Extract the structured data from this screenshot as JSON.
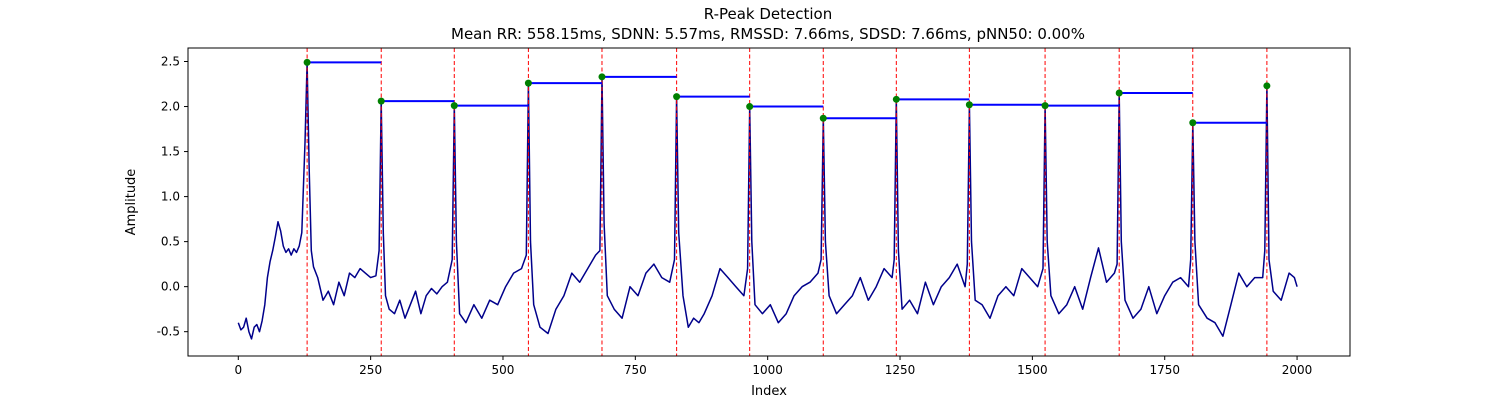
{
  "chart_data": {
    "type": "line",
    "title": "R-Peak Detection",
    "subtitle": "Mean RR: 558.15ms, SDNN: 5.57ms, RMSSD: 7.66ms, SDSD: 7.66ms, pNN50: 0.00%",
    "xlabel": "Index",
    "ylabel": "Amplitude",
    "xlim": [
      -95,
      2100
    ],
    "ylim": [
      -0.77,
      2.65
    ],
    "xticks": [
      0,
      250,
      500,
      750,
      1000,
      1250,
      1500,
      1750,
      2000
    ],
    "yticks": [
      -0.5,
      0.0,
      0.5,
      1.0,
      1.5,
      2.0,
      2.5
    ],
    "grid": false,
    "colors": {
      "signal": "#00008b",
      "peak_lines": "#ff0000",
      "peak_markers": "#008000",
      "rr_segments": "#0000ff"
    },
    "peaks": {
      "x": [
        130,
        270,
        408,
        548,
        687,
        828,
        966,
        1105,
        1243,
        1381,
        1524,
        1664,
        1803,
        1943
      ],
      "y": [
        2.49,
        2.06,
        2.01,
        2.26,
        2.33,
        2.11,
        2.0,
        1.87,
        2.08,
        2.02,
        2.01,
        2.15,
        1.82,
        2.23
      ]
    },
    "signal": {
      "x": [
        0,
        5,
        10,
        15,
        20,
        25,
        30,
        35,
        40,
        45,
        50,
        55,
        60,
        65,
        70,
        75,
        80,
        85,
        90,
        95,
        100,
        105,
        110,
        115,
        120,
        126,
        130,
        134,
        138,
        142,
        150,
        160,
        170,
        180,
        190,
        200,
        210,
        220,
        230,
        240,
        250,
        260,
        266,
        270,
        274,
        278,
        285,
        295,
        305,
        315,
        325,
        335,
        345,
        355,
        365,
        375,
        385,
        395,
        404,
        408,
        412,
        418,
        430,
        445,
        460,
        475,
        490,
        505,
        520,
        535,
        544,
        548,
        552,
        558,
        570,
        585,
        600,
        615,
        630,
        645,
        660,
        675,
        683,
        687,
        691,
        697,
        710,
        725,
        740,
        755,
        770,
        785,
        800,
        815,
        824,
        828,
        832,
        840,
        850,
        860,
        870,
        880,
        895,
        910,
        925,
        940,
        955,
        962,
        966,
        970,
        976,
        990,
        1005,
        1020,
        1035,
        1050,
        1065,
        1080,
        1095,
        1101,
        1105,
        1109,
        1116,
        1130,
        1145,
        1160,
        1175,
        1190,
        1205,
        1220,
        1235,
        1239,
        1243,
        1247,
        1254,
        1268,
        1283,
        1298,
        1313,
        1328,
        1343,
        1358,
        1373,
        1377,
        1381,
        1385,
        1392,
        1405,
        1420,
        1435,
        1450,
        1465,
        1480,
        1495,
        1510,
        1520,
        1524,
        1528,
        1535,
        1550,
        1565,
        1580,
        1595,
        1610,
        1625,
        1640,
        1655,
        1660,
        1664,
        1668,
        1675,
        1690,
        1705,
        1720,
        1735,
        1750,
        1765,
        1780,
        1795,
        1799,
        1803,
        1807,
        1814,
        1830,
        1845,
        1860,
        1875,
        1890,
        1905,
        1920,
        1935,
        1939,
        1943,
        1947,
        1955,
        1970,
        1985,
        1995,
        2000
      ],
      "y": [
        -0.4,
        -0.48,
        -0.45,
        -0.35,
        -0.5,
        -0.58,
        -0.45,
        -0.42,
        -0.5,
        -0.38,
        -0.2,
        0.1,
        0.28,
        0.4,
        0.55,
        0.72,
        0.62,
        0.45,
        0.38,
        0.42,
        0.35,
        0.42,
        0.38,
        0.45,
        0.6,
        1.6,
        2.49,
        1.3,
        0.4,
        0.22,
        0.1,
        -0.15,
        -0.05,
        -0.2,
        0.05,
        -0.1,
        0.15,
        0.1,
        0.2,
        0.15,
        0.1,
        0.12,
        0.4,
        2.06,
        0.6,
        -0.1,
        -0.25,
        -0.3,
        -0.15,
        -0.35,
        -0.2,
        -0.05,
        -0.3,
        -0.1,
        -0.02,
        -0.08,
        0.0,
        0.05,
        0.3,
        2.01,
        0.5,
        -0.3,
        -0.4,
        -0.2,
        -0.35,
        -0.15,
        -0.2,
        0.0,
        0.15,
        0.2,
        0.35,
        2.26,
        0.5,
        -0.2,
        -0.45,
        -0.52,
        -0.25,
        -0.1,
        0.15,
        0.05,
        0.2,
        0.35,
        0.4,
        2.33,
        0.7,
        -0.1,
        -0.25,
        -0.35,
        0.0,
        -0.1,
        0.15,
        0.25,
        0.1,
        0.05,
        0.3,
        2.11,
        0.6,
        -0.1,
        -0.45,
        -0.35,
        -0.4,
        -0.3,
        -0.1,
        0.2,
        0.1,
        0.0,
        -0.1,
        0.2,
        2.0,
        0.5,
        -0.2,
        -0.3,
        -0.2,
        -0.4,
        -0.3,
        -0.1,
        0.0,
        0.05,
        0.15,
        0.3,
        1.87,
        0.5,
        -0.1,
        -0.3,
        -0.2,
        -0.1,
        0.1,
        -0.15,
        0.0,
        0.2,
        0.1,
        0.3,
        2.08,
        0.4,
        -0.25,
        -0.15,
        -0.3,
        0.05,
        -0.2,
        0.0,
        0.1,
        0.25,
        0.0,
        0.25,
        2.02,
        0.5,
        -0.15,
        -0.2,
        -0.35,
        -0.1,
        0.0,
        -0.1,
        0.2,
        0.1,
        0.0,
        0.2,
        2.01,
        0.5,
        -0.1,
        -0.3,
        -0.2,
        0.0,
        -0.25,
        0.1,
        0.43,
        0.05,
        0.15,
        0.25,
        2.15,
        0.5,
        -0.15,
        -0.35,
        -0.25,
        0.0,
        -0.3,
        -0.1,
        0.05,
        0.1,
        0.0,
        0.3,
        1.82,
        0.5,
        -0.2,
        -0.35,
        -0.4,
        -0.55,
        -0.2,
        0.15,
        0.0,
        0.1,
        0.1,
        0.4,
        2.23,
        0.3,
        -0.05,
        -0.15,
        0.15,
        0.1,
        0.0
      ]
    }
  }
}
